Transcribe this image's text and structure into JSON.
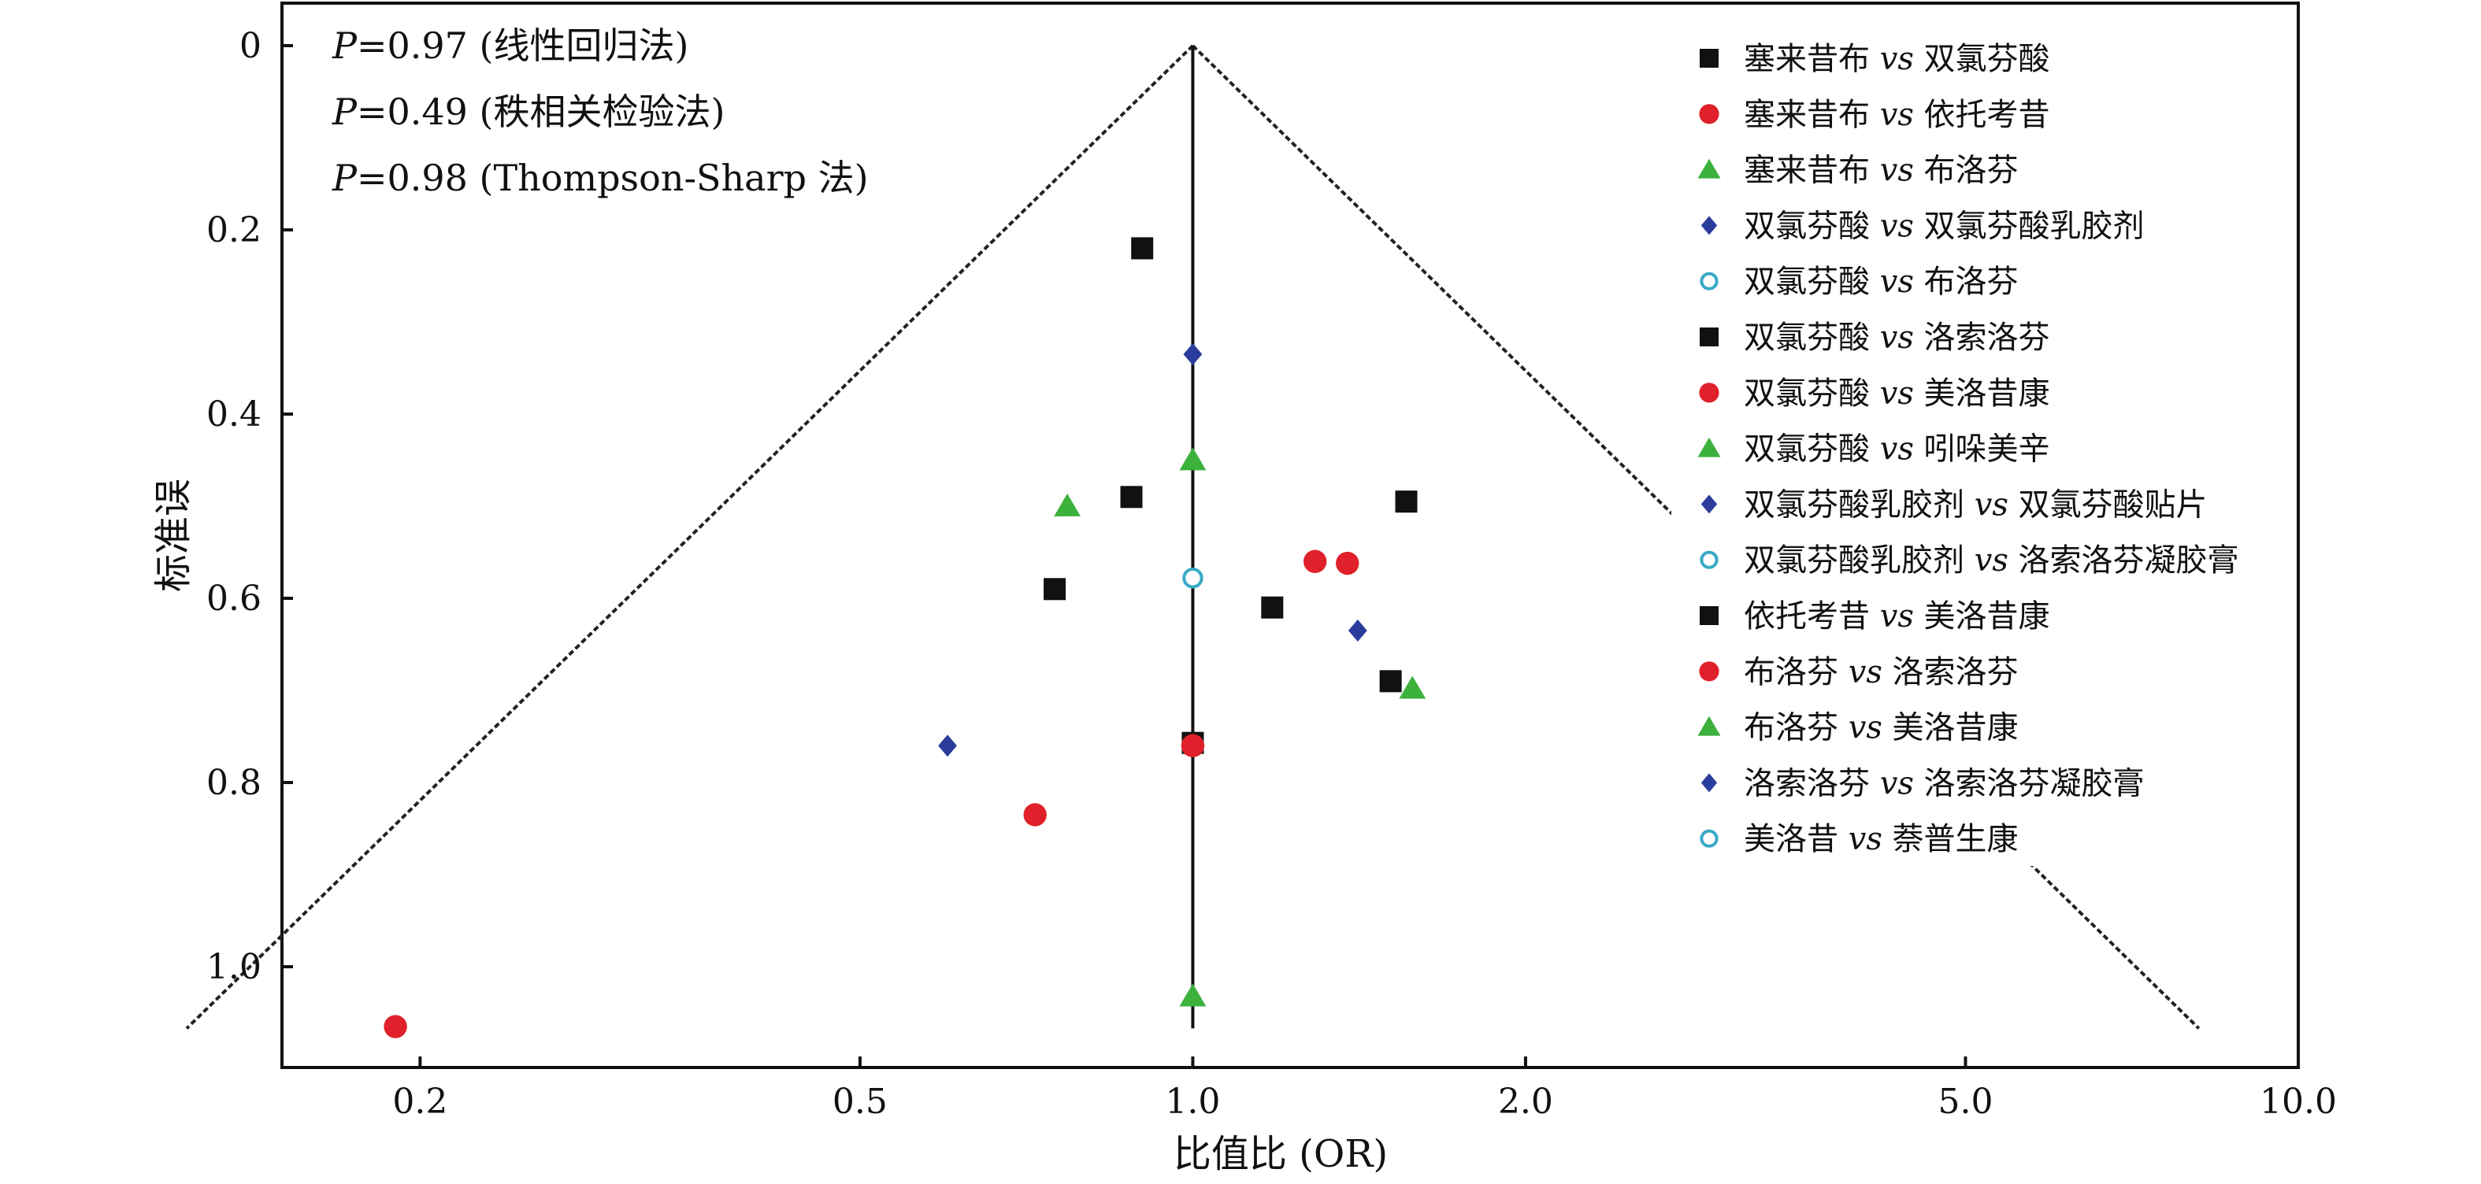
{
  "chart_data": {
    "type": "scatter",
    "xlabel": "比值比 (OR)",
    "ylabel": "标准误",
    "x_scale": "log",
    "xlim": [
      0.15,
      10.0
    ],
    "ylim": [
      0,
      1.1
    ],
    "y_inverted": true,
    "x_ticks": [
      {
        "value": 0.2,
        "label": "0.2"
      },
      {
        "value": 0.5,
        "label": "0.5"
      },
      {
        "value": 1.0,
        "label": "1.0"
      },
      {
        "value": 2.0,
        "label": "2.0"
      },
      {
        "value": 5.0,
        "label": "5.0"
      },
      {
        "value": 10.0,
        "label": "10.0"
      }
    ],
    "y_ticks": [
      {
        "value": 0,
        "label": "0"
      },
      {
        "value": 0.2,
        "label": "0.2"
      },
      {
        "value": 0.4,
        "label": "0.4"
      },
      {
        "value": 0.6,
        "label": "0.6"
      },
      {
        "value": 0.8,
        "label": "0.8"
      },
      {
        "value": 1.0,
        "label": "1.0"
      }
    ],
    "reference_line_x": 1.0,
    "funnel": {
      "apex": [
        1.0,
        0
      ],
      "left_end": [
        0.123,
        1.067
      ],
      "right_end": [
        8.13,
        1.067
      ]
    },
    "annotations": [
      {
        "p": "P",
        "rest": "=0.97 (线性回归法)"
      },
      {
        "p": "P",
        "rest": "=0.49 (秩相关检验法)"
      },
      {
        "p": "P",
        "rest": "=0.98 (Thompson-Sharp 法)"
      }
    ],
    "legend_position": "top-right",
    "series": [
      {
        "a": "塞来昔布",
        "vs": "vs",
        "b": "双氯芬酸",
        "name": "塞来昔布 vs 双氯芬酸",
        "marker": "square",
        "color": "#111111",
        "points": [
          [
            0.9,
            0.22
          ]
        ]
      },
      {
        "a": "塞来昔布",
        "vs": "vs",
        "b": "依托考昔",
        "name": "塞来昔布 vs 依托考昔",
        "marker": "circle",
        "color": "#e0202a",
        "points": []
      },
      {
        "a": "塞来昔布",
        "vs": "vs",
        "b": "布洛芬",
        "name": "塞来昔布 vs 布洛芬",
        "marker": "triangle",
        "color": "#3cb13c",
        "points": [
          [
            1.0,
            0.45
          ]
        ]
      },
      {
        "a": "双氯芬酸",
        "vs": "vs",
        "b": "双氯芬酸乳胶剂",
        "name": "双氯芬酸 vs 双氯芬酸乳胶剂",
        "marker": "diamond",
        "color": "#2b3d9c",
        "points": [
          [
            1.0,
            0.335
          ]
        ]
      },
      {
        "a": "双氯芬酸",
        "vs": "vs",
        "b": "布洛芬",
        "name": "双氯芬酸 vs 布洛芬",
        "marker": "open-circle",
        "color": "#39a9c6",
        "points": []
      },
      {
        "a": "双氯芬酸",
        "vs": "vs",
        "b": "洛索洛芬",
        "name": "双氯芬酸 vs 洛索洛芬",
        "marker": "square",
        "color": "#111111",
        "points": [
          [
            0.88,
            0.49
          ],
          [
            0.75,
            0.59
          ],
          [
            1.18,
            0.61
          ]
        ]
      },
      {
        "a": "双氯芬酸",
        "vs": "vs",
        "b": "美洛昔康",
        "name": "双氯芬酸 vs 美洛昔康",
        "marker": "circle",
        "color": "#e0202a",
        "points": [
          [
            1.29,
            0.56
          ],
          [
            1.38,
            0.562
          ]
        ]
      },
      {
        "a": "双氯芬酸",
        "vs": "vs",
        "b": "吲哚美辛",
        "name": "双氯芬酸 vs 吲哚美辛",
        "marker": "triangle",
        "color": "#3cb13c",
        "points": [
          [
            0.77,
            0.5
          ]
        ]
      },
      {
        "a": "双氯芬酸乳胶剂",
        "vs": "vs",
        "b": "双氯芬酸贴片",
        "name": "双氯芬酸乳胶剂 vs 双氯芬酸贴片",
        "marker": "diamond",
        "color": "#2b3d9c",
        "points": [
          [
            1.41,
            0.635
          ]
        ]
      },
      {
        "a": "双氯芬酸乳胶剂",
        "vs": "vs",
        "b": "洛索洛芬凝胶膏",
        "name": "双氯芬酸乳胶剂 vs 洛索洛芬凝胶膏",
        "marker": "open-circle",
        "color": "#39a9c6",
        "points": [
          [
            1.0,
            0.578
          ]
        ]
      },
      {
        "a": "依托考昔",
        "vs": "vs",
        "b": "美洛昔康",
        "name": "依托考昔 vs 美洛昔康",
        "marker": "square",
        "color": "#111111",
        "points": [
          [
            1.56,
            0.495
          ],
          [
            1.51,
            0.69
          ],
          [
            1.0,
            0.757
          ]
        ]
      },
      {
        "a": "布洛芬",
        "vs": "vs",
        "b": "洛索洛芬",
        "name": "布洛芬 vs 洛索洛芬",
        "marker": "circle",
        "color": "#e0202a",
        "points": [
          [
            0.72,
            0.835
          ],
          [
            0.19,
            1.065
          ],
          [
            1.0,
            0.76
          ]
        ]
      },
      {
        "a": "布洛芬",
        "vs": "vs",
        "b": "美洛昔康",
        "name": "布洛芬 vs 美洛昔康",
        "marker": "triangle",
        "color": "#3cb13c",
        "points": [
          [
            1.58,
            0.698
          ],
          [
            1.0,
            1.032
          ]
        ]
      },
      {
        "a": "洛索洛芬",
        "vs": "vs",
        "b": "洛索洛芬凝胶膏",
        "name": "洛索洛芬 vs 洛索洛芬凝胶膏",
        "marker": "diamond",
        "color": "#2b3d9c",
        "points": [
          [
            0.6,
            0.76
          ]
        ]
      },
      {
        "a": "美洛昔",
        "vs": "vs",
        "b": "萘普生康",
        "name": "美洛昔 vs 萘普生康",
        "marker": "open-circle",
        "color": "#39a9c6",
        "points": []
      }
    ]
  }
}
